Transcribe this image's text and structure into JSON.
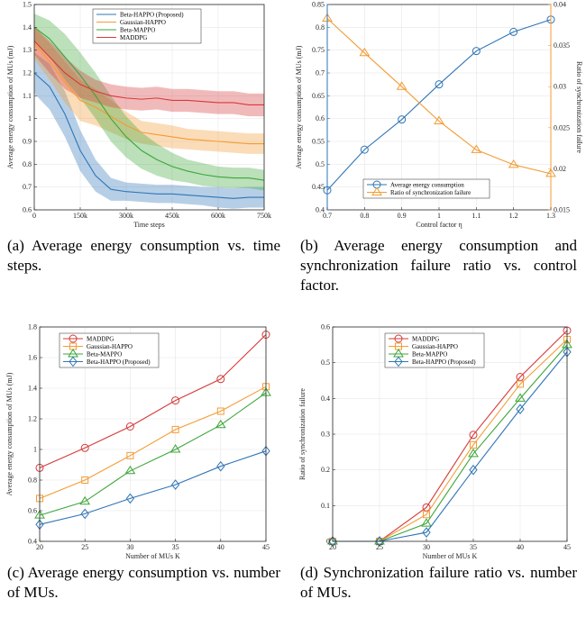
{
  "captions": [
    {
      "label": "(a)",
      "text": "Average energy consumption vs. time steps."
    },
    {
      "label": "(b)",
      "text": "Average energy consumption and synchronization failure ratio vs. control factor."
    },
    {
      "label": "(c)",
      "text": "Average energy consumption vs. number of MUs."
    },
    {
      "label": "(d)",
      "text": "Synchronization failure ratio vs. number of MUs."
    }
  ],
  "chart_data": [
    {
      "type": "line",
      "xlabel": "Time steps",
      "ylabel": "Average energy consumption of MUs (mJ)",
      "xlim": [
        0,
        750000
      ],
      "ylim": [
        0.6,
        1.5
      ],
      "xticks": [
        0,
        150000,
        300000,
        450000,
        600000,
        750000
      ],
      "xtick_labels": [
        "0",
        "150k",
        "300k",
        "450k",
        "600k",
        "750k"
      ],
      "yticks": [
        0.6,
        0.7,
        0.8,
        0.9,
        1.0,
        1.1,
        1.2,
        1.3,
        1.4,
        1.5
      ],
      "ytick_labels": [
        "0.6",
        "0.7",
        "0.8",
        "0.9",
        "1",
        "1.1",
        "1.2",
        "1.3",
        "1.4",
        "1.5"
      ],
      "legend_position": "top-right",
      "shaded_bands": true,
      "x": [
        0,
        50000,
        100000,
        150000,
        200000,
        250000,
        300000,
        350000,
        400000,
        450000,
        500000,
        550000,
        600000,
        650000,
        700000,
        750000
      ],
      "series": [
        {
          "name": "Beta-HAPPO (Proposed)",
          "color": "#2e75b6",
          "values": [
            1.2,
            1.14,
            1.02,
            0.86,
            0.75,
            0.69,
            0.68,
            0.675,
            0.67,
            0.67,
            0.665,
            0.66,
            0.655,
            0.65,
            0.655,
            0.655
          ],
          "band": [
            0.09,
            0.1,
            0.1,
            0.09,
            0.07,
            0.05,
            0.04,
            0.04,
            0.04,
            0.04,
            0.04,
            0.04,
            0.045,
            0.045,
            0.045,
            0.045
          ]
        },
        {
          "name": "Gaussian-HAPPO",
          "color": "#f39c34",
          "values": [
            1.33,
            1.25,
            1.16,
            1.08,
            1.05,
            1.01,
            0.97,
            0.94,
            0.93,
            0.92,
            0.91,
            0.905,
            0.9,
            0.895,
            0.89,
            0.89
          ],
          "band": [
            0.07,
            0.08,
            0.09,
            0.09,
            0.08,
            0.07,
            0.06,
            0.05,
            0.05,
            0.05,
            0.045,
            0.045,
            0.045,
            0.045,
            0.045,
            0.045
          ]
        },
        {
          "name": "Beta-MAPPO",
          "color": "#3da63a",
          "values": [
            1.4,
            1.35,
            1.27,
            1.19,
            1.1,
            1.0,
            0.92,
            0.86,
            0.82,
            0.79,
            0.77,
            0.755,
            0.745,
            0.74,
            0.74,
            0.73
          ],
          "band": [
            0.06,
            0.08,
            0.1,
            0.1,
            0.1,
            0.1,
            0.09,
            0.08,
            0.07,
            0.06,
            0.05,
            0.05,
            0.045,
            0.045,
            0.045,
            0.045
          ]
        },
        {
          "name": "MADDPG",
          "color": "#d63a3a",
          "values": [
            1.34,
            1.27,
            1.2,
            1.15,
            1.12,
            1.1,
            1.09,
            1.085,
            1.09,
            1.08,
            1.08,
            1.075,
            1.07,
            1.07,
            1.06,
            1.06
          ],
          "band": [
            0.06,
            0.07,
            0.07,
            0.06,
            0.05,
            0.05,
            0.05,
            0.05,
            0.05,
            0.05,
            0.05,
            0.05,
            0.05,
            0.05,
            0.05,
            0.05
          ]
        }
      ]
    },
    {
      "type": "line",
      "xlabel": "Control factor η",
      "ylabel": "Average energy consumption of MUs (mJ)",
      "ylabel_right": "Ratio of synchronization failure",
      "xlim": [
        0.7,
        1.3
      ],
      "ylim": [
        0.4,
        0.85
      ],
      "ylim_right": [
        0.015,
        0.04
      ],
      "x": [
        0.7,
        0.8,
        0.9,
        1.0,
        1.1,
        1.2,
        1.3
      ],
      "xticks": [
        0.7,
        0.8,
        0.9,
        1.0,
        1.1,
        1.2,
        1.3
      ],
      "xtick_labels": [
        "0.7",
        "0.8",
        "0.9",
        "1",
        "1.1",
        "1.2",
        "1.3"
      ],
      "yticks": [
        0.4,
        0.45,
        0.5,
        0.55,
        0.6,
        0.65,
        0.7,
        0.75,
        0.8,
        0.85
      ],
      "ytick_labels": [
        "0.4",
        "0.45",
        "0.5",
        "0.55",
        "0.6",
        "0.65",
        "0.7",
        "0.75",
        "0.8",
        "0.85"
      ],
      "yticks_right": [
        0.015,
        0.02,
        0.025,
        0.03,
        0.035,
        0.04
      ],
      "ytick_labels_right": [
        "0.015",
        "0.02",
        "0.025",
        "0.03",
        "0.035",
        "0.04"
      ],
      "legend_position": "bottom-right",
      "series": [
        {
          "name": "Average energy consumption",
          "axis": "left",
          "color": "#2e75b6",
          "marker": "circle",
          "values": [
            0.443,
            0.532,
            0.598,
            0.675,
            0.748,
            0.79,
            0.817
          ]
        },
        {
          "name": "Ratio of synchronization failure",
          "axis": "right",
          "color": "#f39c34",
          "marker": "triangle",
          "values": [
            0.0383,
            0.0341,
            0.03,
            0.0258,
            0.0223,
            0.0205,
            0.0194
          ]
        }
      ]
    },
    {
      "type": "line",
      "xlabel": "Number of MUs  K",
      "ylabel": "Average energy consumption of MUs (mJ)",
      "xlim": [
        20,
        45
      ],
      "ylim": [
        0.4,
        1.8
      ],
      "x": [
        20,
        25,
        30,
        35,
        40,
        45
      ],
      "xticks": [
        20,
        25,
        30,
        35,
        40,
        45
      ],
      "xtick_labels": [
        "20",
        "25",
        "30",
        "35",
        "40",
        "45"
      ],
      "yticks": [
        0.4,
        0.6,
        0.8,
        1.0,
        1.2,
        1.4,
        1.6,
        1.8
      ],
      "ytick_labels": [
        "0.4",
        "0.6",
        "0.8",
        "1",
        "1.2",
        "1.4",
        "1.6",
        "1.8"
      ],
      "legend_position": "top-left",
      "series": [
        {
          "name": "MADDPG",
          "color": "#d63a3a",
          "marker": "circle",
          "values": [
            0.88,
            1.01,
            1.15,
            1.32,
            1.46,
            1.75
          ]
        },
        {
          "name": "Gaussian-HAPPO",
          "color": "#f39c34",
          "marker": "square",
          "values": [
            0.68,
            0.8,
            0.96,
            1.13,
            1.25,
            1.41
          ]
        },
        {
          "name": "Beta-MAPPO",
          "color": "#3da63a",
          "marker": "triangle",
          "values": [
            0.57,
            0.66,
            0.86,
            1.0,
            1.16,
            1.37
          ]
        },
        {
          "name": "Beta-HAPPO (Proposed)",
          "color": "#2e75b6",
          "marker": "diamond",
          "values": [
            0.51,
            0.58,
            0.68,
            0.77,
            0.89,
            0.99
          ]
        }
      ]
    },
    {
      "type": "line",
      "xlabel": "Number of MUs  K",
      "ylabel": "Ratio of synchronization failure",
      "xlim": [
        20,
        45
      ],
      "ylim": [
        0,
        0.6
      ],
      "x": [
        20,
        25,
        30,
        35,
        40,
        45
      ],
      "xticks": [
        20,
        25,
        30,
        35,
        40,
        45
      ],
      "xtick_labels": [
        "20",
        "25",
        "30",
        "35",
        "40",
        "45"
      ],
      "yticks": [
        0,
        0.1,
        0.2,
        0.3,
        0.4,
        0.5,
        0.6
      ],
      "ytick_labels": [
        "0",
        "0.1",
        "0.2",
        "0.3",
        "0.4",
        "0.5",
        "0.6"
      ],
      "legend_position": "top-left",
      "series": [
        {
          "name": "MADDPG",
          "color": "#d63a3a",
          "marker": "circle",
          "values": [
            0.0,
            0.0,
            0.095,
            0.298,
            0.46,
            0.59
          ]
        },
        {
          "name": "Gaussian-HAPPO",
          "color": "#f39c34",
          "marker": "square",
          "values": [
            0.0,
            0.0,
            0.075,
            0.27,
            0.44,
            0.565
          ]
        },
        {
          "name": "Beta-MAPPO",
          "color": "#3da63a",
          "marker": "triangle",
          "values": [
            0.0,
            0.0,
            0.05,
            0.245,
            0.4,
            0.55
          ]
        },
        {
          "name": "Beta-HAPPO (Proposed)",
          "color": "#2e75b6",
          "marker": "diamond",
          "values": [
            0.0,
            0.0,
            0.025,
            0.2,
            0.37,
            0.53
          ]
        }
      ]
    }
  ]
}
